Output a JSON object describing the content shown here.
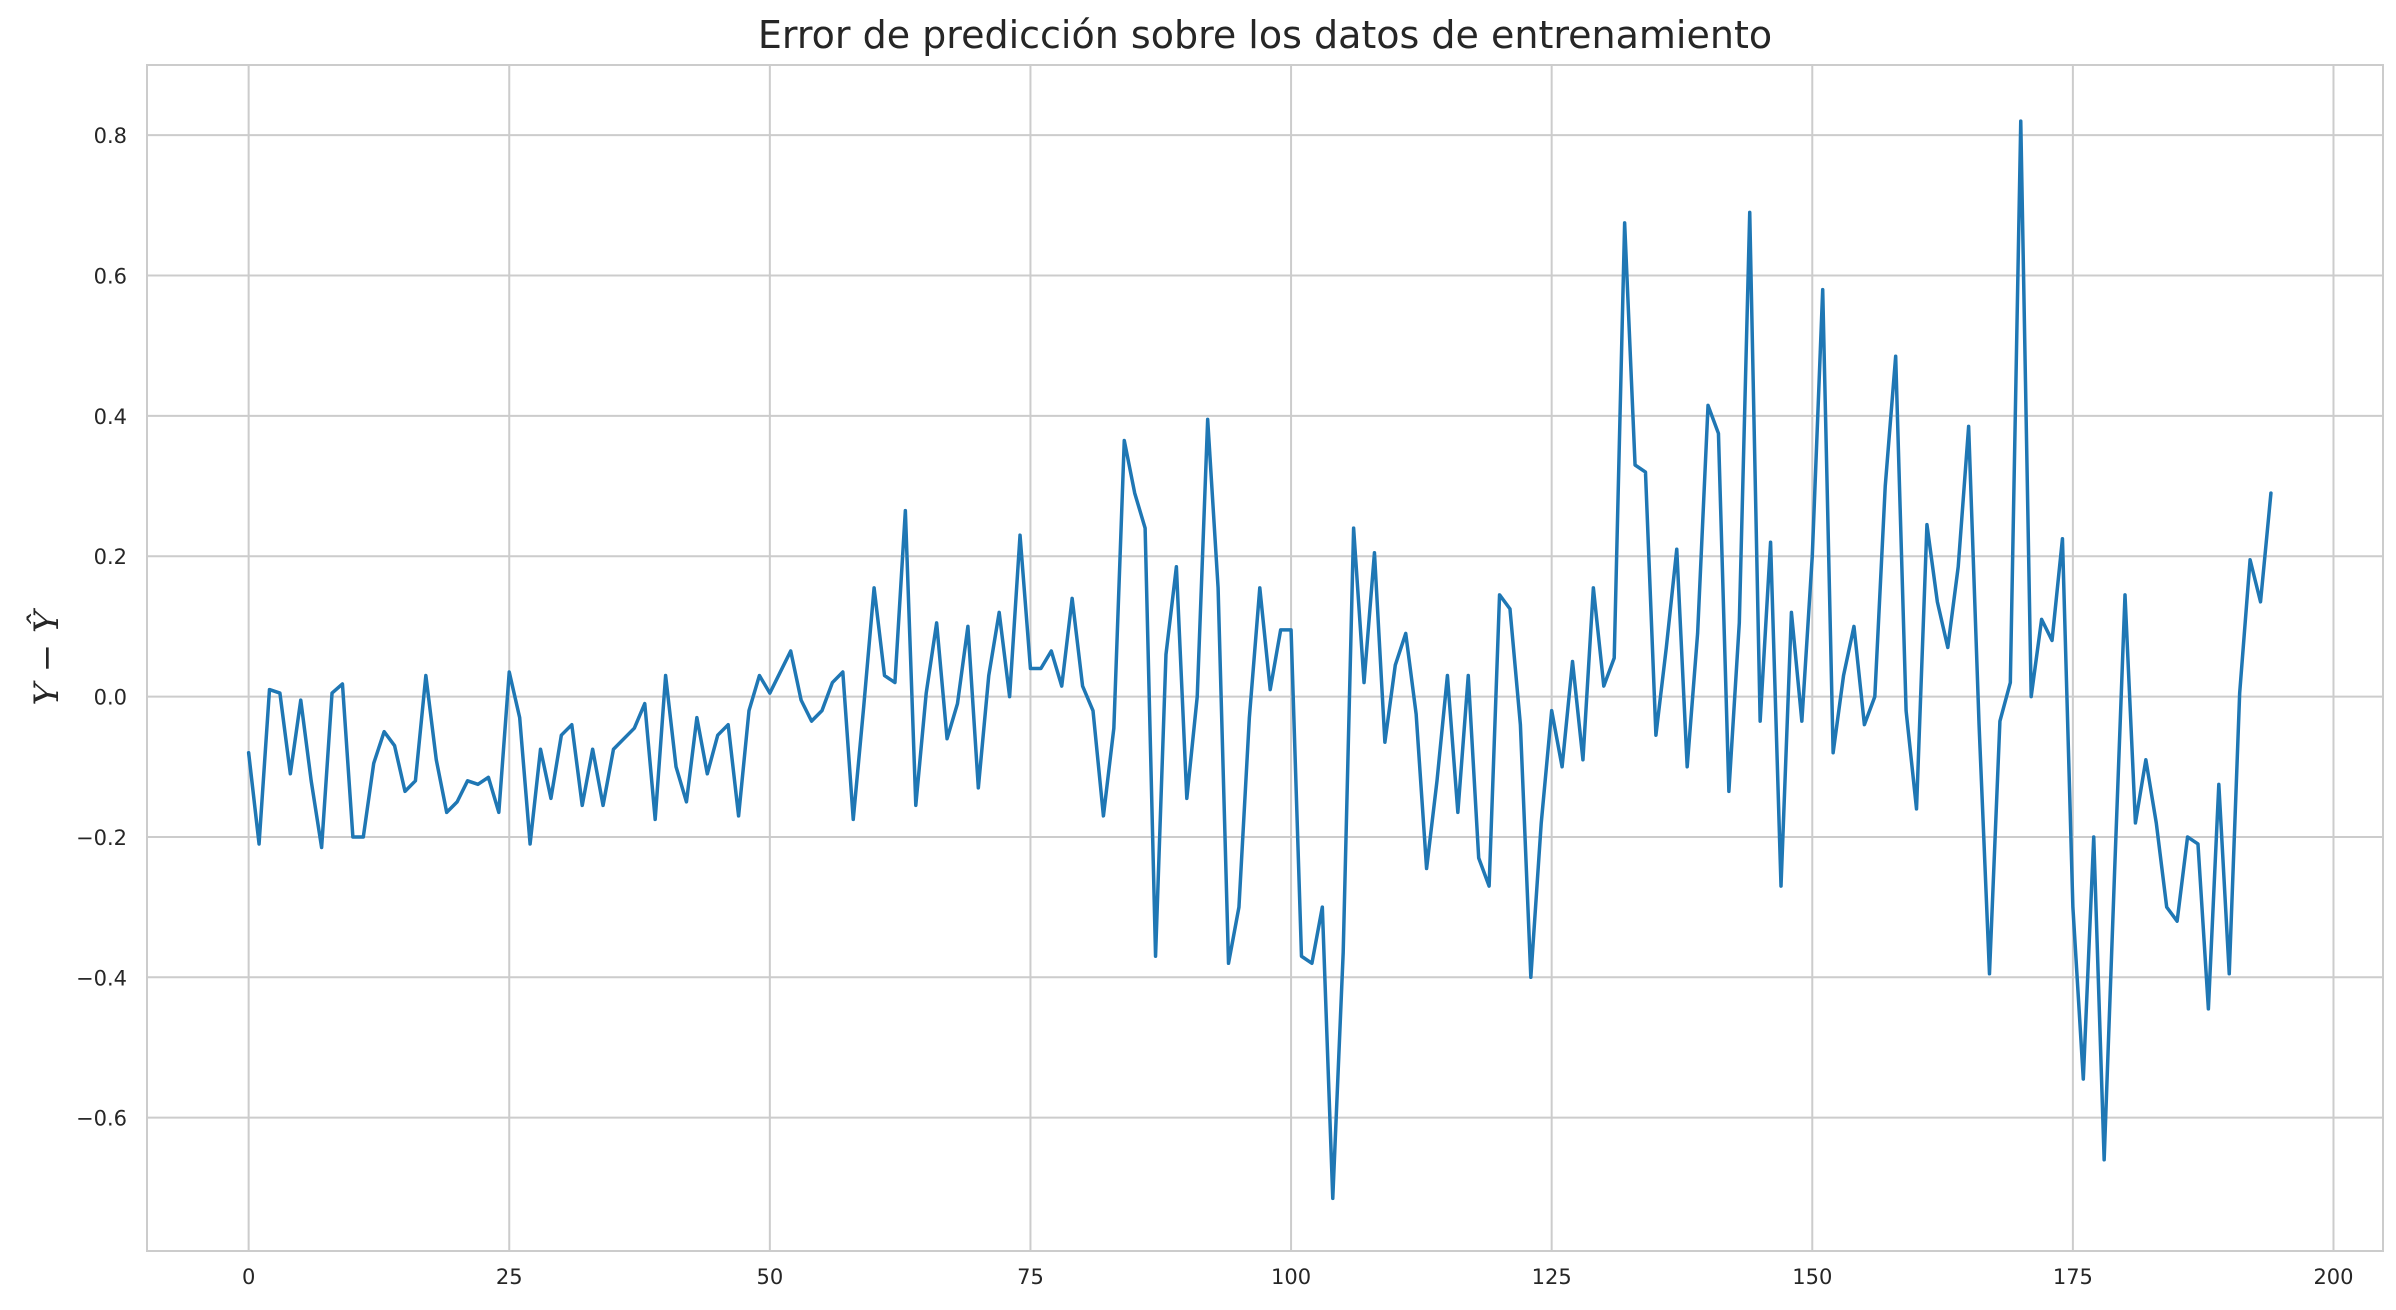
{
  "chart_data": {
    "type": "line",
    "title": "Error de predicción sobre los datos de entrenamiento",
    "xlabel": "",
    "ylabel": "Y − Ŷ",
    "xlim": [
      -9.75,
      204.75
    ],
    "ylim": [
      -0.79,
      0.9
    ],
    "xticks": [
      0,
      25,
      50,
      75,
      100,
      125,
      150,
      175,
      200
    ],
    "xtick_labels": [
      "0",
      "25",
      "50",
      "75",
      "100",
      "125",
      "150",
      "175",
      "200"
    ],
    "yticks": [
      -0.6,
      -0.4,
      -0.2,
      0.0,
      0.2,
      0.4,
      0.6,
      0.8
    ],
    "ytick_labels": [
      "−0.6",
      "−0.4",
      "−0.2",
      "0.0",
      "0.2",
      "0.4",
      "0.6",
      "0.8"
    ],
    "grid": true,
    "colors": {
      "line": "#1f77b4",
      "grid": "#cccccc",
      "background": "#ffffff"
    },
    "series": [
      {
        "values": [
          -0.08,
          -0.21,
          0.01,
          0.005,
          -0.11,
          -0.005,
          -0.12,
          -0.215,
          0.005,
          0.018,
          -0.2,
          -0.2,
          -0.095,
          -0.05,
          -0.07,
          -0.135,
          -0.12,
          0.03,
          -0.09,
          -0.165,
          -0.15,
          -0.12,
          -0.125,
          -0.115,
          -0.165,
          0.035,
          -0.03,
          -0.21,
          -0.075,
          -0.145,
          -0.055,
          -0.04,
          -0.155,
          -0.075,
          -0.155,
          -0.075,
          -0.06,
          -0.045,
          -0.01,
          -0.175,
          0.03,
          -0.1,
          -0.15,
          -0.03,
          -0.11,
          -0.055,
          -0.04,
          -0.17,
          -0.02,
          0.03,
          0.005,
          0.035,
          0.065,
          -0.005,
          -0.035,
          -0.02,
          0.02,
          0.035,
          -0.175,
          -0.015,
          0.155,
          0.03,
          0.02,
          0.265,
          -0.155,
          0.005,
          0.105,
          -0.06,
          -0.01,
          0.1,
          -0.13,
          0.03,
          0.12,
          0.0,
          0.23,
          0.04,
          0.04,
          0.065,
          0.015,
          0.14,
          0.015,
          -0.02,
          -0.17,
          -0.045,
          0.365,
          0.29,
          0.24,
          -0.37,
          0.06,
          0.185,
          -0.145,
          0.0,
          0.395,
          0.155,
          -0.38,
          -0.3,
          -0.03,
          0.155,
          0.01,
          0.095,
          0.095,
          -0.37,
          -0.38,
          -0.3,
          -0.715,
          -0.365,
          0.24,
          0.02,
          0.205,
          -0.065,
          0.045,
          0.09,
          -0.025,
          -0.245,
          -0.12,
          0.03,
          -0.165,
          0.03,
          -0.23,
          -0.27,
          0.145,
          0.125,
          -0.04,
          -0.4,
          -0.18,
          -0.02,
          -0.1,
          0.05,
          -0.09,
          0.155,
          0.015,
          0.055,
          0.675,
          0.33,
          0.32,
          -0.055,
          0.07,
          0.21,
          -0.1,
          0.09,
          0.415,
          0.375,
          -0.135,
          0.105,
          0.69,
          -0.035,
          0.22,
          -0.27,
          0.12,
          -0.035,
          0.2,
          0.58,
          -0.08,
          0.03,
          0.1,
          -0.04,
          0.0,
          0.3,
          0.485,
          -0.02,
          -0.16,
          0.245,
          0.135,
          0.07,
          0.185,
          0.385,
          -0.04,
          -0.395,
          -0.035,
          0.02,
          0.82,
          0.0,
          0.11,
          0.08,
          0.225,
          -0.3,
          -0.545,
          -0.2,
          -0.66,
          -0.25,
          0.145,
          -0.18,
          -0.09,
          -0.18,
          -0.3,
          -0.32,
          -0.2,
          -0.21,
          -0.445,
          -0.125,
          -0.395,
          0.005,
          0.195,
          0.135,
          0.29
        ]
      }
    ]
  }
}
